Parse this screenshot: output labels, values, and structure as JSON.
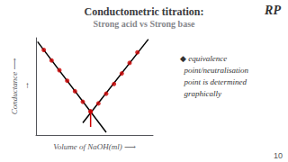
{
  "chart_data": {
    "type": "scatter",
    "title": "Conductometric titration:",
    "subtitle": "Strong acid vs Strong base",
    "x_label": "Volume of NaOH(ml) ⟶",
    "y_label": "Conductance ⟶",
    "annotations": [
      {
        "text": "↑"
      },
      {
        "text": "◆ equivalence\n  point/neutralisation\n  point is determined\n  graphically"
      },
      {
        "text": "RP"
      },
      {
        "text": "10"
      }
    ],
    "series": [
      {
        "type": "line",
        "color": "#000000",
        "x": [
          0.1,
          4.5
        ],
        "values": [
          10.517142857142858,
          -0.6714285714285714
        ]
      },
      {
        "type": "scatter",
        "marker": "circle",
        "color": "#cc0000",
        "x": [
          0.5,
          1.0,
          1.5,
          2.0,
          2.5,
          3.0,
          3.5
        ],
        "values": [
          9.5,
          8.2,
          7.0,
          5.7,
          4.4,
          3.1,
          1.9
        ]
      },
      {
        "type": "line",
        "color": "#000000",
        "x": [
          3.0,
          7.2
        ],
        "values": [
          0.5,
          10.82
        ]
      },
      {
        "type": "scatter",
        "marker": "circle",
        "color": "#cc0000",
        "x": [
          3.5,
          4.0,
          4.5,
          5.0,
          5.5,
          6.0,
          6.5
        ],
        "values": [
          1.9,
          2.9,
          4.1,
          5.3,
          6.6,
          7.9,
          9.2
        ]
      },
      {
        "type": "line",
        "color": "#cc0000",
        "x": [
          3.5,
          3.5
        ],
        "values": [
          0,
          1.8714285714285714
        ]
      }
    ],
    "xlim": [
      0.0,
      7.5
    ],
    "ylim": [
      -1,
      11
    ],
    "tick_labels": false,
    "grid": false
  }
}
